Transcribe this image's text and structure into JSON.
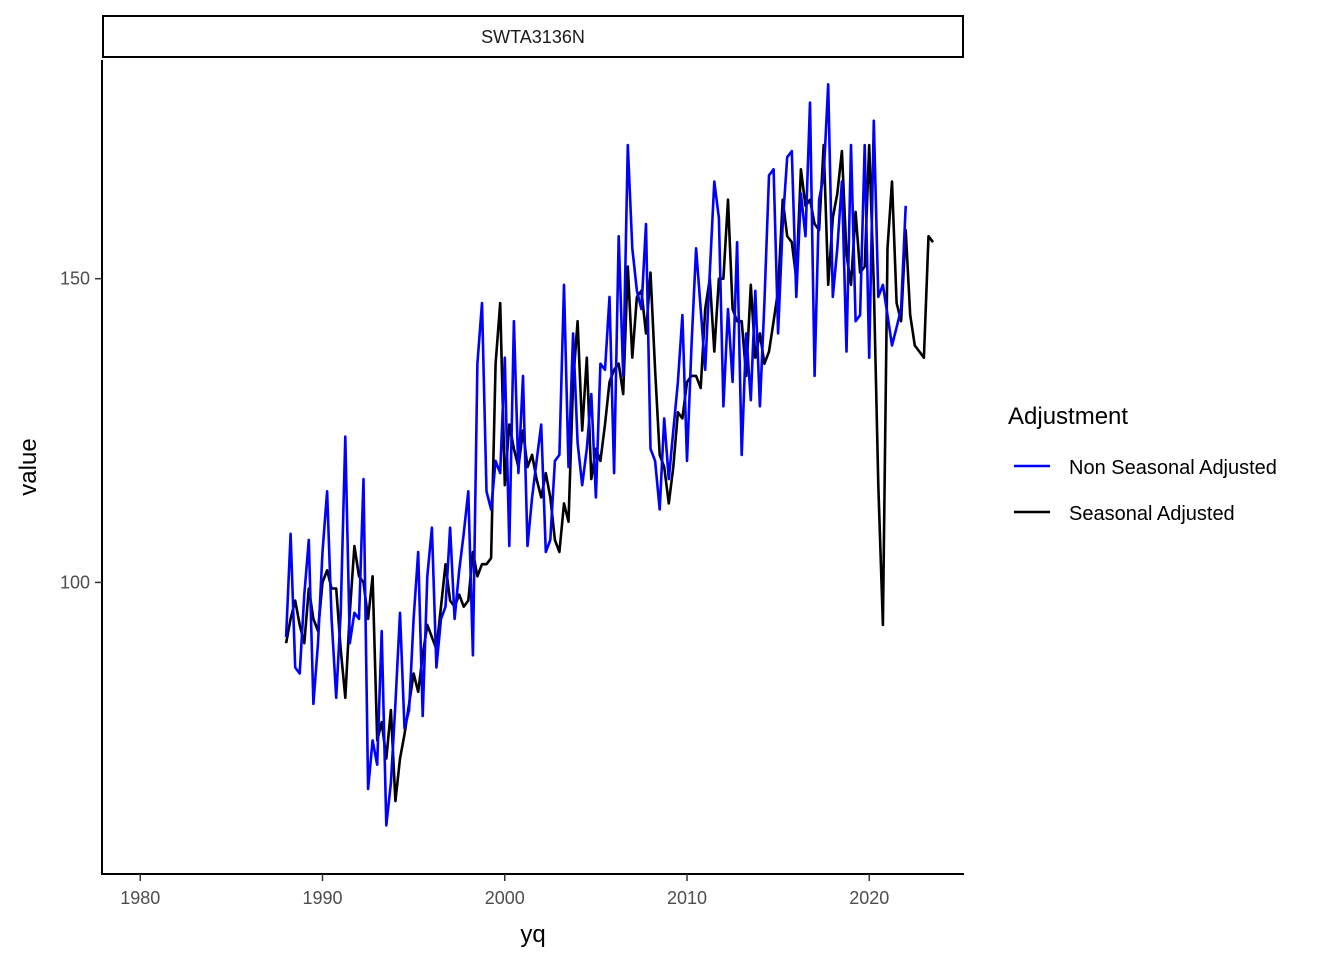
{
  "chart_data": {
    "type": "line",
    "facet_label": "SWTA3136N",
    "xlabel": "yq",
    "ylabel": "value",
    "xlim": [
      1977.9,
      2025.2
    ],
    "ylim": [
      52,
      186
    ],
    "x_ticks": [
      1980,
      1990,
      2000,
      2010,
      2020
    ],
    "y_ticks": [
      100,
      150
    ],
    "grid": false,
    "legend": {
      "title": "Adjustment",
      "position": "right",
      "entries": [
        {
          "label": "Non Seasonal Adjusted",
          "color": "#0000ff"
        },
        {
          "label": "Seasonal Adjusted",
          "color": "#000000"
        }
      ]
    },
    "x_start": 1988.0,
    "x_step": 0.25,
    "series": [
      {
        "name": "Seasonal Adjusted",
        "color": "#000000",
        "values": [
          90,
          94,
          97,
          93,
          90,
          99,
          94,
          92,
          100,
          102,
          99,
          99,
          89,
          81,
          95,
          106,
          101,
          100,
          94,
          101,
          74,
          77,
          71,
          79,
          64,
          71,
          75,
          80,
          85,
          82,
          88,
          93,
          91,
          89,
          96,
          103,
          97,
          96,
          98,
          96,
          97,
          105,
          101,
          103,
          103,
          104,
          136,
          146,
          116,
          126,
          122,
          119,
          125,
          119,
          121,
          117,
          114,
          118,
          114,
          107,
          105,
          113,
          110,
          133,
          143,
          125,
          137,
          117,
          122,
          120,
          126,
          133,
          135,
          136,
          131,
          152,
          137,
          147,
          148,
          141,
          151,
          135,
          121,
          119,
          113,
          119,
          128,
          127,
          133,
          134,
          134,
          132,
          145,
          150,
          138,
          150,
          150,
          163,
          145,
          143,
          143,
          134,
          149,
          137,
          141,
          136,
          138,
          143,
          148,
          163,
          157,
          156,
          150,
          168,
          162,
          163,
          159,
          158,
          172,
          149,
          160,
          164,
          171,
          154,
          149,
          161,
          151,
          152,
          172,
          149,
          116,
          93,
          155,
          166,
          146,
          143,
          158,
          144,
          139,
          138,
          137,
          157,
          156
        ]
      },
      {
        "name": "Non Seasonal Adjusted",
        "color": "#0000ff",
        "values": [
          91,
          108,
          86,
          85,
          98,
          107,
          80,
          90,
          105,
          115,
          94,
          81,
          95,
          124,
          90,
          95,
          94,
          117,
          66,
          74,
          70,
          92,
          60,
          67,
          80,
          95,
          76,
          79,
          94,
          105,
          78,
          101,
          109,
          86,
          94,
          96,
          109,
          94,
          102,
          108,
          115,
          88,
          136,
          146,
          115,
          112,
          120,
          118,
          137,
          106,
          143,
          118,
          134,
          106,
          114,
          120,
          126,
          105,
          107,
          120,
          121,
          149,
          119,
          141,
          123,
          116,
          122,
          131,
          114,
          136,
          135,
          147,
          118,
          157,
          134,
          172,
          155,
          148,
          145,
          159,
          122,
          120,
          112,
          127,
          117,
          125,
          133,
          144,
          120,
          139,
          155,
          145,
          135,
          151,
          166,
          160,
          129,
          145,
          133,
          156,
          121,
          141,
          130,
          148,
          129,
          146,
          167,
          168,
          141,
          159,
          170,
          171,
          147,
          164,
          157,
          179,
          134,
          163,
          167,
          182,
          147,
          155,
          166,
          138,
          172,
          143,
          144,
          172,
          137,
          176,
          147,
          149,
          144,
          139,
          142,
          145,
          162
        ]
      }
    ]
  }
}
